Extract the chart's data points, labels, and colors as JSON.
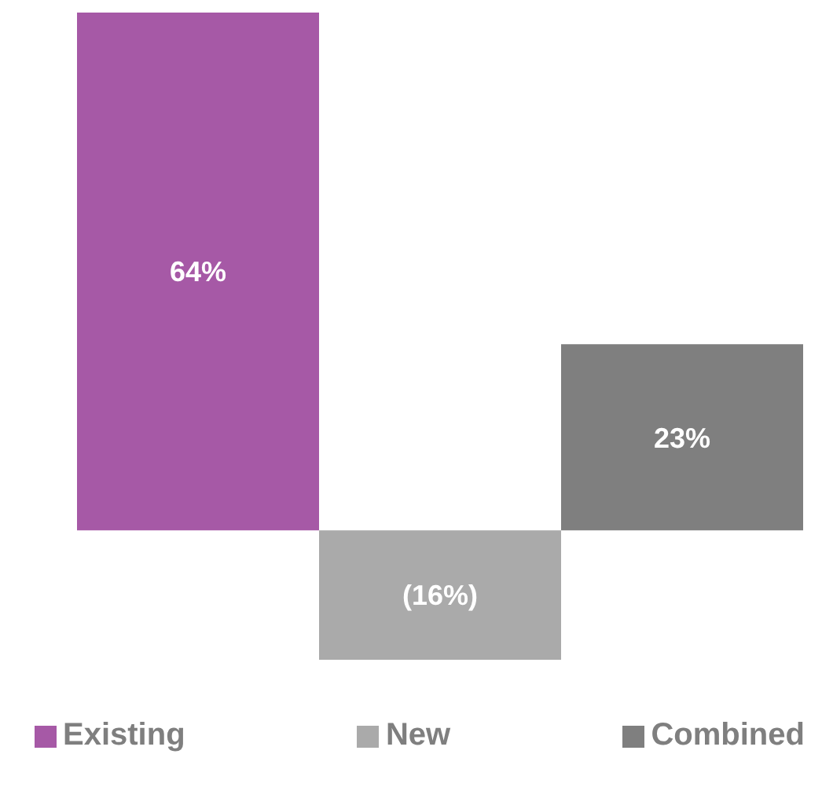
{
  "chart_data": {
    "type": "bar",
    "categories": [
      null,
      null,
      null
    ],
    "stacked": true,
    "series": [
      {
        "name": "Existing",
        "color": "#a659a6",
        "values": [
          64,
          null,
          null
        ],
        "value_labels": [
          "64%",
          null,
          null
        ]
      },
      {
        "name": "New",
        "color": "#aaaaaa",
        "values": [
          null,
          -16,
          null
        ],
        "value_labels": [
          null,
          "(16%)",
          null
        ]
      },
      {
        "name": "Combined",
        "color": "#7f7f7f",
        "values": [
          null,
          null,
          23
        ],
        "value_labels": [
          null,
          null,
          "23%"
        ]
      }
    ],
    "legend": "bottom"
  }
}
